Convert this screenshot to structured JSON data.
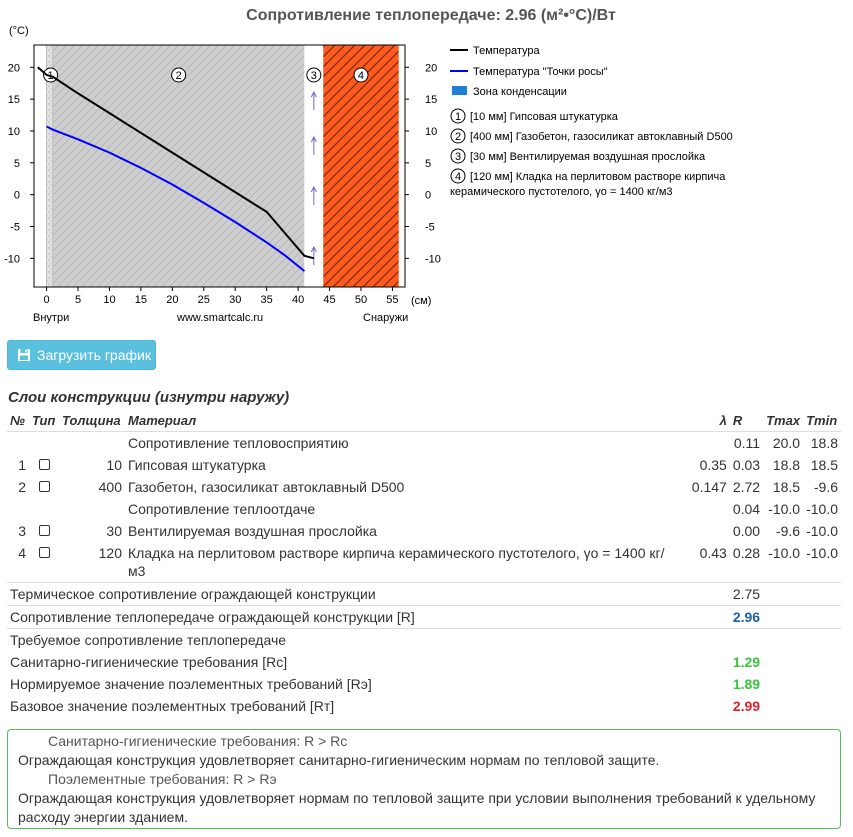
{
  "chart_data": {
    "type": "line",
    "title": "Сопротивление теплопередаче: 2.96 (м²•°С)/Вт",
    "ylabel": "(°С)",
    "xlabel": "(см)",
    "x_left_label": "Внутри",
    "x_center_label": "www.smartcalc.ru",
    "x_right_label": "Снаружи",
    "xlim": [
      -2,
      57
    ],
    "ylim": [
      -14.5,
      23.5
    ],
    "x_ticks": [
      0,
      5,
      10,
      15,
      20,
      25,
      30,
      35,
      40,
      45,
      50,
      55
    ],
    "y_ticks": [
      20,
      15,
      10,
      5,
      0,
      -5,
      -10
    ],
    "layers": [
      {
        "num": "1",
        "from": 0,
        "to": 1,
        "type": "plaster"
      },
      {
        "num": "2",
        "from": 1,
        "to": 41,
        "type": "aerated"
      },
      {
        "num": "3",
        "from": 41,
        "to": 44,
        "type": "air"
      },
      {
        "num": "4",
        "from": 44,
        "to": 56,
        "type": "brick"
      }
    ],
    "series": [
      {
        "name": "Температура",
        "color": "#000000",
        "x": [
          -1.4,
          0,
          1,
          5,
          10,
          15,
          20,
          25,
          30,
          35,
          41,
          42.5
        ],
        "y": [
          20.0,
          18.8,
          18.5,
          15.9,
          12.8,
          9.7,
          6.6,
          3.5,
          0.4,
          -2.7,
          -9.6,
          -10.0
        ]
      },
      {
        "name": "Температура \"Точки росы\"",
        "color": "#0000ff",
        "x": [
          0,
          1,
          5,
          10,
          15,
          20,
          25,
          30,
          35,
          38,
          41
        ],
        "y": [
          10.7,
          10.2,
          8.7,
          6.6,
          4.2,
          1.6,
          -1.3,
          -4.3,
          -7.5,
          -9.6,
          -12
        ]
      }
    ],
    "legend": [
      {
        "label": "Температура",
        "kind": "line",
        "color": "#000000"
      },
      {
        "label": "Температура \"Точки росы\"",
        "kind": "line",
        "color": "#0000ff"
      },
      {
        "label": "Зона конденсации",
        "kind": "box",
        "color": "#1e7fd6"
      }
    ],
    "layer_legend": [
      {
        "num": "1",
        "text": "[10 мм] Гипсовая штукатурка"
      },
      {
        "num": "2",
        "text": "[400 мм] Газобетон, газосиликат автоклавный D500"
      },
      {
        "num": "3",
        "text": "[30 мм] Вентилируемая воздушная прослойка"
      },
      {
        "num": "4",
        "text_line1": "[120 мм] Кладка на перлитовом растворе кирпича",
        "text_line2": "керамического пустотелого, γо = 1400 кг/м3"
      }
    ]
  },
  "download_button": {
    "label": "Загрузить график",
    "icon": "download-chart-icon"
  },
  "layers_section": {
    "title": "Слои конструкции (изнутри наружу)",
    "headers": {
      "num": "№",
      "type": "Тип",
      "thickness": "Толщина",
      "material": "Материал",
      "lambda": "λ",
      "r": "R",
      "tmax": "Tmax",
      "tmin": "Tmin"
    },
    "rows": [
      {
        "material": "Сопротивление тепловосприятию",
        "r": "0.11",
        "tmax": "20.0",
        "tmin": "18.8"
      },
      {
        "num": "1",
        "thickness": "10",
        "material": "Гипсовая штукатурка",
        "lambda": "0.35",
        "r": "0.03",
        "tmax": "18.8",
        "tmin": "18.5"
      },
      {
        "num": "2",
        "thickness": "400",
        "material": "Газобетон, газосиликат автоклавный D500",
        "lambda": "0.147",
        "r": "2.72",
        "tmax": "18.5",
        "tmin": "-9.6"
      },
      {
        "material": "Сопротивление теплоотдаче",
        "r": "0.04",
        "tmax": "-10.0",
        "tmin": "-10.0"
      },
      {
        "num": "3",
        "thickness": "30",
        "material": "Вентилируемая воздушная прослойка",
        "lambda": "",
        "r": "0.00",
        "tmax": "-9.6",
        "tmin": "-10.0"
      },
      {
        "num": "4",
        "thickness": "120",
        "material": "Кладка на перлитовом растворе кирпича керамического пустотелого, γо = 1400 кг/м3",
        "lambda": "0.43",
        "r": "0.28",
        "tmax": "-10.0",
        "tmin": "-10.0"
      }
    ],
    "summary": [
      {
        "label": "Термическое сопротивление ограждающей конструкции",
        "value": "2.75",
        "style": "plain"
      },
      {
        "label": "Сопротивление теплопередаче ограждающей конструкции [R]",
        "value": "2.96",
        "style": "blue"
      },
      {
        "label": "Требуемое сопротивление теплопередаче",
        "value": "",
        "style": "plain"
      },
      {
        "label": "Санитарно-гигиенические требования [Rс]",
        "value": "1.29",
        "style": "green"
      },
      {
        "label": "Нормируемое значение поэлементных требований [Rэ]",
        "value": "1.89",
        "style": "green"
      },
      {
        "label": "Базовое значение поэлементных требований [Rт]",
        "value": "2.99",
        "style": "red"
      }
    ]
  },
  "result_box": {
    "head1": "Санитарно-гигиенические требования: R > Rс",
    "text1": "Ограждающая конструкция удовлетворяет санитарно-гигиеническим нормам по тепловой защите.",
    "head2": "Поэлементные требования: R > Rэ",
    "text2": "Ограждающая конструкция удовлетворяет нормам по тепловой защите при условии выполнения требований к удельному расходу энергии зданием.",
    "border_color": "#5cb85c"
  }
}
